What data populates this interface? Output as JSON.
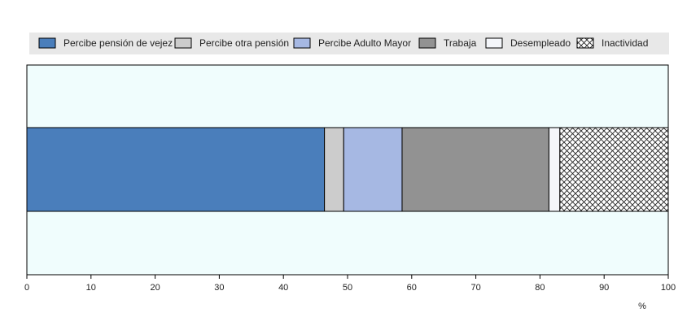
{
  "chart_data": {
    "type": "bar",
    "orientation": "horizontal",
    "stacked": true,
    "categories": [
      ""
    ],
    "series": [
      {
        "name": "Percibe pensión de vejez",
        "values": [
          46.4
        ],
        "color": "#4a7ebb",
        "pattern": "solid"
      },
      {
        "name": "Percibe otra pensión",
        "values": [
          3.0
        ],
        "color": "#cccccc",
        "pattern": "solid"
      },
      {
        "name": "Percibe Adulto Mayor",
        "values": [
          9.1
        ],
        "color": "#a6b8e3",
        "pattern": "solid"
      },
      {
        "name": "Trabaja",
        "values": [
          22.9
        ],
        "color": "#929292",
        "pattern": "solid"
      },
      {
        "name": "Desempleado",
        "values": [
          1.7
        ],
        "color": "#f4f6fa",
        "pattern": "solid"
      },
      {
        "name": "Inactividad",
        "values": [
          16.9
        ],
        "color": "#ffffff",
        "pattern": "crosshatch"
      }
    ],
    "xlabel": "%",
    "xlim": [
      0,
      100
    ],
    "xticks": [
      "0",
      "10",
      "20",
      "30",
      "40",
      "50",
      "60",
      "70",
      "80",
      "90",
      "100"
    ],
    "legend_position": "top",
    "plot_background": "#f0fdfd",
    "grid": false
  }
}
